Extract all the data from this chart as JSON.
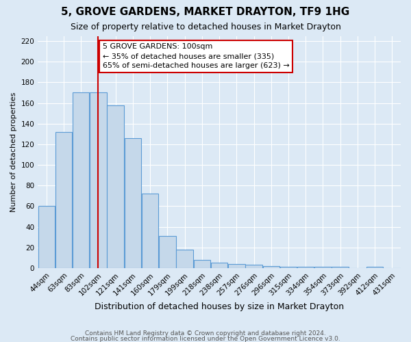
{
  "title": "5, GROVE GARDENS, MARKET DRAYTON, TF9 1HG",
  "subtitle": "Size of property relative to detached houses in Market Drayton",
  "xlabel": "Distribution of detached houses by size in Market Drayton",
  "ylabel": "Number of detached properties",
  "footer_line1": "Contains HM Land Registry data © Crown copyright and database right 2024.",
  "footer_line2": "Contains public sector information licensed under the Open Government Licence v3.0.",
  "bin_labels": [
    "44sqm",
    "63sqm",
    "83sqm",
    "102sqm",
    "121sqm",
    "141sqm",
    "160sqm",
    "179sqm",
    "199sqm",
    "218sqm",
    "238sqm",
    "257sqm",
    "276sqm",
    "296sqm",
    "315sqm",
    "334sqm",
    "354sqm",
    "373sqm",
    "392sqm",
    "412sqm",
    "431sqm"
  ],
  "bar_values": [
    60,
    132,
    170,
    170,
    158,
    126,
    72,
    31,
    18,
    8,
    5,
    4,
    3,
    2,
    1,
    1,
    1,
    1,
    0,
    1,
    0
  ],
  "bar_color": "#c5d8ea",
  "bar_edge_color": "#5b9bd5",
  "vline_x_index": 3,
  "property_label": "5 GROVE GARDENS: 100sqm",
  "smaller_text": "35% of detached houses are smaller (335)",
  "larger_text": "65% of semi-detached houses are larger (623)",
  "annotation_box_facecolor": "#ffffff",
  "annotation_box_edgecolor": "#cc0000",
  "vline_color": "#cc0000",
  "ylim": [
    0,
    225
  ],
  "yticks": [
    0,
    20,
    40,
    60,
    80,
    100,
    120,
    140,
    160,
    180,
    200,
    220
  ],
  "background_color": "#dce9f5",
  "grid_color": "#ffffff",
  "title_fontsize": 11,
  "subtitle_fontsize": 9,
  "ylabel_fontsize": 8,
  "xlabel_fontsize": 9,
  "tick_fontsize": 7.5,
  "footer_fontsize": 6.5,
  "annotation_fontsize": 8
}
